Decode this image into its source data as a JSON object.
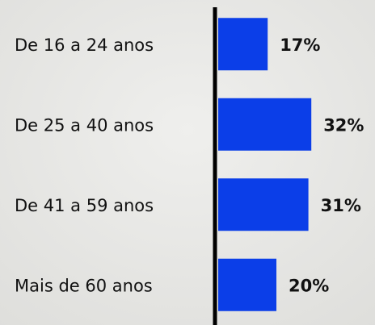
{
  "chart_data": {
    "type": "bar",
    "orientation": "horizontal",
    "categories": [
      "De 16 a 24 anos",
      "De 25 a 40 anos",
      "De 41 a 59 anos",
      "Mais de 60 anos"
    ],
    "values": [
      17,
      32,
      31,
      20
    ],
    "value_labels": [
      "17%",
      "32%",
      "31%",
      "20%"
    ],
    "color": "#0b3ee8"
  }
}
